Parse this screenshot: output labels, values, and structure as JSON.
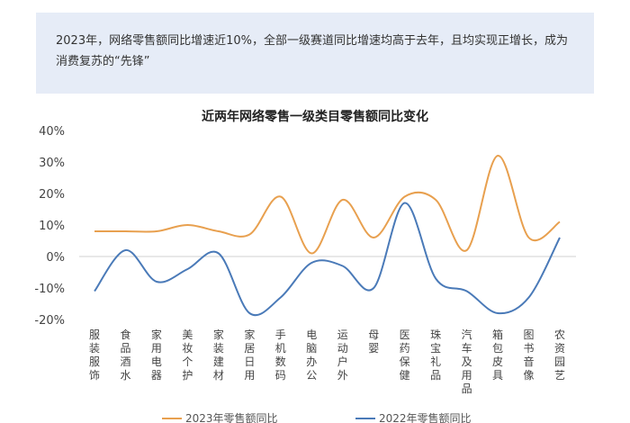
{
  "callout": {
    "text": "2023年，网络零售额同比增速近10%，全部一级赛道同比增速均高于去年，且均实现正增长，成为消费复苏的“先锋”"
  },
  "chart_data": {
    "type": "line",
    "title": "近两年网络零售一级类目零售额同比变化",
    "categories": [
      "服装服饰",
      "食品酒水",
      "家用电器",
      "美妆个护",
      "家装建材",
      "家居日用",
      "手机数码",
      "电脑办公",
      "运动户外",
      "母婴",
      "医药保健",
      "珠宝礼品",
      "汽车及用品",
      "箱包皮具",
      "图书音像",
      "农资园艺"
    ],
    "y_ticks": [
      "40%",
      "30%",
      "20%",
      "10%",
      "0%",
      "-10%",
      "-20%"
    ],
    "ylim": [
      -20,
      40
    ],
    "series": [
      {
        "name": "2023年零售额同比",
        "color": "#e8a04f",
        "values": [
          8,
          8,
          8,
          10,
          8,
          7,
          19,
          1,
          18,
          6,
          19,
          18,
          2,
          32,
          6,
          11
        ]
      },
      {
        "name": "2022年零售额同比",
        "color": "#4a7ab8",
        "values": [
          -11,
          2,
          -8,
          -4,
          1,
          -18,
          -13,
          -2,
          -3,
          -10,
          17,
          -7,
          -11,
          -18,
          -13,
          6
        ]
      }
    ]
  }
}
